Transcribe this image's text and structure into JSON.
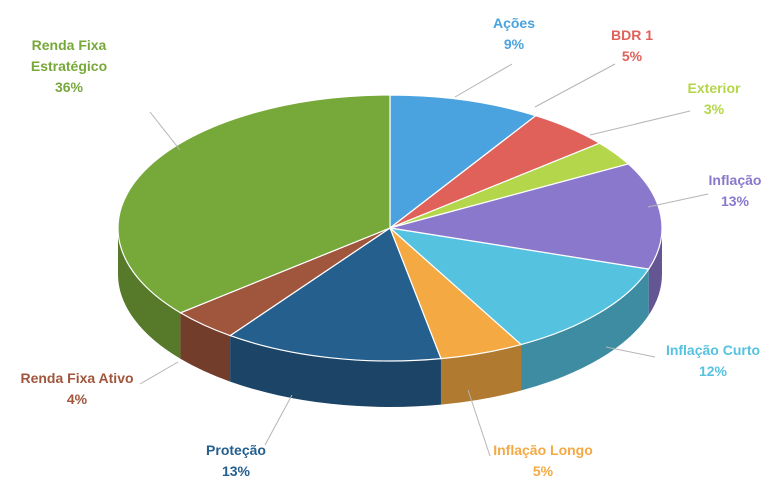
{
  "chart_data": {
    "type": "pie",
    "style": "3d",
    "title": "",
    "unit": "%",
    "slices": [
      {
        "label": "Ações",
        "value": 9,
        "display": "9%",
        "color": "#4aa3df"
      },
      {
        "label": "BDR 1",
        "value": 5,
        "display": "5%",
        "color": "#e0605a"
      },
      {
        "label": "Exterior",
        "value": 3,
        "display": "3%",
        "color": "#b4d64a"
      },
      {
        "label": "Inflação",
        "value": 13,
        "display": "13%",
        "color": "#8a78cc"
      },
      {
        "label": "Inflação Curto",
        "value": 12,
        "display": "12%",
        "color": "#55c2e0"
      },
      {
        "label": "Inflação Longo",
        "value": 5,
        "display": "5%",
        "color": "#f5a942"
      },
      {
        "label": "Proteção",
        "value": 13,
        "display": "13%",
        "color": "#255f8e"
      },
      {
        "label": "Renda Fixa Ativo",
        "value": 4,
        "display": "4%",
        "color": "#a0553d"
      },
      {
        "label": "Renda Fixa Estratégico",
        "value": 36,
        "display": "36%",
        "color": "#77a83a"
      }
    ]
  }
}
